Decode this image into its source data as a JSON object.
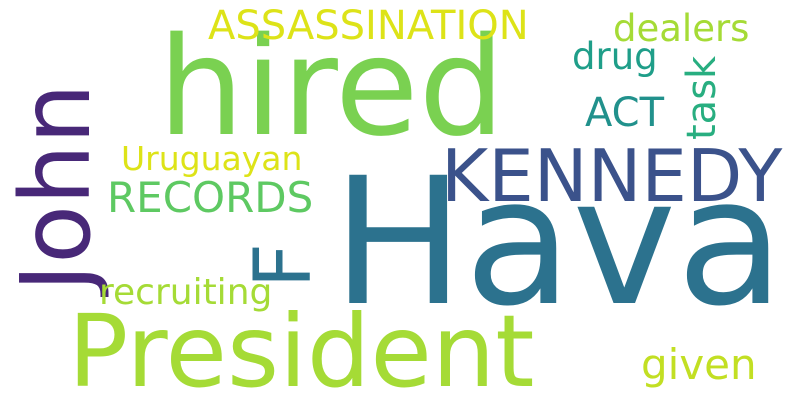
{
  "words": [
    {
      "id": "word-hava",
      "text": "Hava",
      "color": "#2c728e"
    },
    {
      "id": "word-hired",
      "text": "hired",
      "color": "#7ad151"
    },
    {
      "id": "word-president",
      "text": "President",
      "color": "#a5db36"
    },
    {
      "id": "word-john",
      "text": "John",
      "color": "#482878"
    },
    {
      "id": "word-kennedy",
      "text": "KENNEDY",
      "color": "#3b528b"
    },
    {
      "id": "word-f",
      "text": "F",
      "color": "#2c728e"
    },
    {
      "id": "word-assassination",
      "text": "ASSASSINATION",
      "color": "#dde318"
    },
    {
      "id": "word-records",
      "text": "RECORDS",
      "color": "#5ec962"
    },
    {
      "id": "word-recruiting",
      "text": "recruiting",
      "color": "#a5db36"
    },
    {
      "id": "word-uruguayan",
      "text": "Uruguayan",
      "color": "#dde318"
    },
    {
      "id": "word-act",
      "text": "ACT",
      "color": "#21918c"
    },
    {
      "id": "word-task",
      "text": "task",
      "color": "#28ae80"
    },
    {
      "id": "word-drug",
      "text": "drug",
      "color": "#1f9e89"
    },
    {
      "id": "word-dealers",
      "text": "dealers",
      "color": "#a5db36"
    },
    {
      "id": "word-given",
      "text": "given",
      "color": "#c2df23"
    }
  ]
}
